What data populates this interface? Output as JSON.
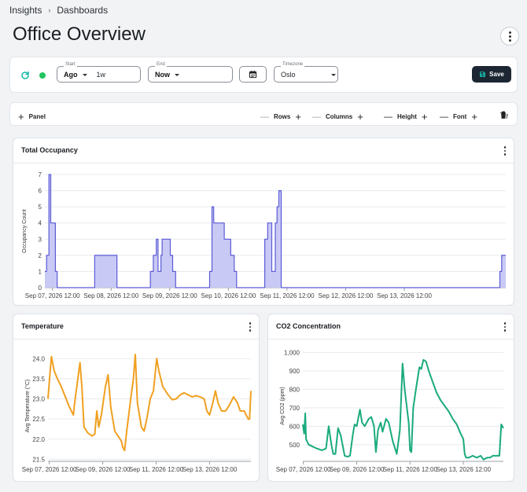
{
  "breadcrumb": {
    "items": [
      "Insights",
      "Dashboards"
    ],
    "separator": "›"
  },
  "page_title": "Office Overview",
  "toolbar": {
    "start": {
      "legend": "Start",
      "mode": "Ago",
      "value": "1w"
    },
    "end": {
      "legend": "End",
      "mode": "Now"
    },
    "timezone": {
      "legend": "Timezone",
      "value": "Oslo"
    },
    "save_label": "Save",
    "status_color": "#22c55e",
    "accent_color": "#14b8a6"
  },
  "layout_bar": {
    "panel_label": "Panel",
    "rows_label": "Rows",
    "columns_label": "Columns",
    "height_label": "Height",
    "font_label": "Font"
  },
  "panels": {
    "occupancy": {
      "title": "Total Occupancy"
    },
    "temperature": {
      "title": "Temperature"
    },
    "co2": {
      "title": "CO2 Concentration"
    }
  },
  "chart_data": [
    {
      "id": "occupancy",
      "type": "area",
      "step": true,
      "title": "Total Occupancy",
      "xlabel": "",
      "ylabel": "Occupancy Count",
      "ylim": [
        0,
        7
      ],
      "yticks": [
        0,
        1,
        2,
        3,
        4,
        5,
        6,
        7
      ],
      "xlim": [
        -0.13,
        7.73
      ],
      "x_tick_labels": [
        "Sep 07, 2026 12:00",
        "Sep 08, 2026 12:00",
        "Sep 09, 2026 12:00",
        "Sep 10, 2026 12:00",
        "Sep 11, 2026 12:00",
        "Sep 12, 2026 12:00",
        "Sep 13, 2026 12:00"
      ],
      "x_tick_values": [
        0,
        1,
        2,
        3,
        4,
        5,
        6
      ],
      "grid": true,
      "color": "#5b5bd6",
      "fill": "#c9c9f5",
      "points": [
        [
          -0.13,
          1
        ],
        [
          -0.1,
          2
        ],
        [
          -0.06,
          7
        ],
        [
          -0.03,
          4
        ],
        [
          0.05,
          1
        ],
        [
          0.08,
          0
        ],
        [
          0.7,
          0
        ],
        [
          0.72,
          2
        ],
        [
          1.08,
          2
        ],
        [
          1.1,
          0
        ],
        [
          1.65,
          0
        ],
        [
          1.67,
          1
        ],
        [
          1.72,
          2
        ],
        [
          1.77,
          3
        ],
        [
          1.8,
          1
        ],
        [
          1.85,
          2
        ],
        [
          1.87,
          3
        ],
        [
          2.01,
          2
        ],
        [
          2.05,
          1
        ],
        [
          2.1,
          0
        ],
        [
          2.65,
          0
        ],
        [
          2.68,
          1
        ],
        [
          2.72,
          5
        ],
        [
          2.75,
          4
        ],
        [
          2.9,
          4
        ],
        [
          2.93,
          3
        ],
        [
          3.04,
          2
        ],
        [
          3.1,
          1
        ],
        [
          3.14,
          0
        ],
        [
          3.6,
          0
        ],
        [
          3.62,
          3
        ],
        [
          3.67,
          4
        ],
        [
          3.74,
          1
        ],
        [
          3.8,
          4
        ],
        [
          3.83,
          5
        ],
        [
          3.86,
          6
        ],
        [
          3.9,
          0
        ],
        [
          7.6,
          0
        ],
        [
          7.63,
          1
        ],
        [
          7.66,
          2
        ],
        [
          7.73,
          2
        ]
      ]
    },
    {
      "id": "temperature",
      "type": "line",
      "title": "Temperature",
      "xlabel": "",
      "ylabel": "Avg Temperature (°C)",
      "ylim": [
        21.45,
        24.2
      ],
      "yticks": [
        21.5,
        22.0,
        22.5,
        23.0,
        23.5,
        24.0
      ],
      "ytick_labels": [
        "21.5",
        "22.0",
        "22.5",
        "23.0",
        "23.5",
        "24.0"
      ],
      "xlim": [
        -0.05,
        7.55
      ],
      "x_tick_labels": [
        "Sep 07, 2026 12:00",
        "Sep 09, 2026 12:00",
        "Sep 11, 2026 12:00",
        "Sep 13, 2026 12:00"
      ],
      "x_tick_values": [
        0,
        2,
        4,
        6
      ],
      "grid": true,
      "color": "#f0a020",
      "points": [
        [
          -0.05,
          23.0
        ],
        [
          0.02,
          23.6
        ],
        [
          0.08,
          24.05
        ],
        [
          0.18,
          23.7
        ],
        [
          0.3,
          23.5
        ],
        [
          0.45,
          23.3
        ],
        [
          0.6,
          23.05
        ],
        [
          0.75,
          22.8
        ],
        [
          0.9,
          22.6
        ],
        [
          0.95,
          22.9
        ],
        [
          1.05,
          23.4
        ],
        [
          1.15,
          23.9
        ],
        [
          1.22,
          23.3
        ],
        [
          1.3,
          22.3
        ],
        [
          1.45,
          22.15
        ],
        [
          1.6,
          22.08
        ],
        [
          1.7,
          22.12
        ],
        [
          1.78,
          22.7
        ],
        [
          1.85,
          22.3
        ],
        [
          1.95,
          22.6
        ],
        [
          2.1,
          23.3
        ],
        [
          2.2,
          23.6
        ],
        [
          2.3,
          22.8
        ],
        [
          2.45,
          22.2
        ],
        [
          2.6,
          22.05
        ],
        [
          2.7,
          21.95
        ],
        [
          2.75,
          21.8
        ],
        [
          2.82,
          21.72
        ],
        [
          2.9,
          22.2
        ],
        [
          3.05,
          23.0
        ],
        [
          3.15,
          23.5
        ],
        [
          3.22,
          24.1
        ],
        [
          3.3,
          22.9
        ],
        [
          3.45,
          22.3
        ],
        [
          3.55,
          22.2
        ],
        [
          3.65,
          22.5
        ],
        [
          3.78,
          23.0
        ],
        [
          3.9,
          23.2
        ],
        [
          4.02,
          24.0
        ],
        [
          4.1,
          23.7
        ],
        [
          4.25,
          23.3
        ],
        [
          4.45,
          23.1
        ],
        [
          4.6,
          22.98
        ],
        [
          4.75,
          23.0
        ],
        [
          4.9,
          23.1
        ],
        [
          5.05,
          23.15
        ],
        [
          5.2,
          23.1
        ],
        [
          5.35,
          23.05
        ],
        [
          5.5,
          23.08
        ],
        [
          5.65,
          23.05
        ],
        [
          5.8,
          23.0
        ],
        [
          5.9,
          22.7
        ],
        [
          6.0,
          22.6
        ],
        [
          6.12,
          22.9
        ],
        [
          6.22,
          23.2
        ],
        [
          6.32,
          22.9
        ],
        [
          6.45,
          22.7
        ],
        [
          6.6,
          22.7
        ],
        [
          6.75,
          22.85
        ],
        [
          6.9,
          23.05
        ],
        [
          7.05,
          22.9
        ],
        [
          7.15,
          22.7
        ],
        [
          7.3,
          22.7
        ],
        [
          7.45,
          22.5
        ],
        [
          7.5,
          22.5
        ],
        [
          7.55,
          23.2
        ]
      ]
    },
    {
      "id": "co2",
      "type": "line",
      "title": "CO2 Concentration",
      "xlabel": "",
      "ylabel": "Avg CO2 (ppm)",
      "ylim": [
        410,
        1010
      ],
      "yticks": [
        500,
        600,
        700,
        800,
        900,
        1000
      ],
      "ytick_labels": [
        "500",
        "600",
        "700",
        "800",
        "900",
        "1,000"
      ],
      "xlim": [
        -0.02,
        7.5
      ],
      "x_tick_labels": [
        "Sep 07, 2026 12:00",
        "Sep 09, 2026 12:00",
        "Sep 11, 2026 12:00",
        "Sep 13, 2026 12:00"
      ],
      "x_tick_values": [
        0,
        2,
        4,
        6
      ],
      "grid": true,
      "color": "#1aaa7d",
      "points": [
        [
          -0.02,
          610
        ],
        [
          0.03,
          560
        ],
        [
          0.07,
          670
        ],
        [
          0.1,
          530
        ],
        [
          0.2,
          500
        ],
        [
          0.35,
          490
        ],
        [
          0.5,
          480
        ],
        [
          0.7,
          470
        ],
        [
          0.85,
          480
        ],
        [
          0.95,
          600
        ],
        [
          1.05,
          500
        ],
        [
          1.12,
          450
        ],
        [
          1.2,
          450
        ],
        [
          1.3,
          590
        ],
        [
          1.4,
          550
        ],
        [
          1.55,
          440
        ],
        [
          1.65,
          435
        ],
        [
          1.75,
          440
        ],
        [
          1.85,
          550
        ],
        [
          1.92,
          610
        ],
        [
          2.0,
          600
        ],
        [
          2.12,
          690
        ],
        [
          2.2,
          620
        ],
        [
          2.3,
          600
        ],
        [
          2.45,
          640
        ],
        [
          2.55,
          650
        ],
        [
          2.65,
          600
        ],
        [
          2.72,
          460
        ],
        [
          2.8,
          580
        ],
        [
          2.9,
          620
        ],
        [
          2.97,
          570
        ],
        [
          3.1,
          640
        ],
        [
          3.2,
          620
        ],
        [
          3.35,
          520
        ],
        [
          3.5,
          450
        ],
        [
          3.62,
          580
        ],
        [
          3.72,
          940
        ],
        [
          3.8,
          800
        ],
        [
          3.95,
          620
        ],
        [
          4.0,
          470
        ],
        [
          4.05,
          460
        ],
        [
          4.12,
          700
        ],
        [
          4.22,
          800
        ],
        [
          4.35,
          920
        ],
        [
          4.42,
          910
        ],
        [
          4.5,
          960
        ],
        [
          4.6,
          950
        ],
        [
          4.7,
          900
        ],
        [
          4.85,
          840
        ],
        [
          5.0,
          780
        ],
        [
          5.15,
          740
        ],
        [
          5.3,
          710
        ],
        [
          5.45,
          680
        ],
        [
          5.6,
          640
        ],
        [
          5.75,
          610
        ],
        [
          5.9,
          560
        ],
        [
          6.0,
          530
        ],
        [
          6.05,
          450
        ],
        [
          6.1,
          430
        ],
        [
          6.2,
          430
        ],
        [
          6.35,
          440
        ],
        [
          6.5,
          430
        ],
        [
          6.65,
          440
        ],
        [
          6.75,
          420
        ],
        [
          6.9,
          430
        ],
        [
          7.0,
          430
        ],
        [
          7.1,
          440
        ],
        [
          7.2,
          440
        ],
        [
          7.35,
          440
        ],
        [
          7.42,
          610
        ],
        [
          7.5,
          590
        ]
      ]
    }
  ]
}
